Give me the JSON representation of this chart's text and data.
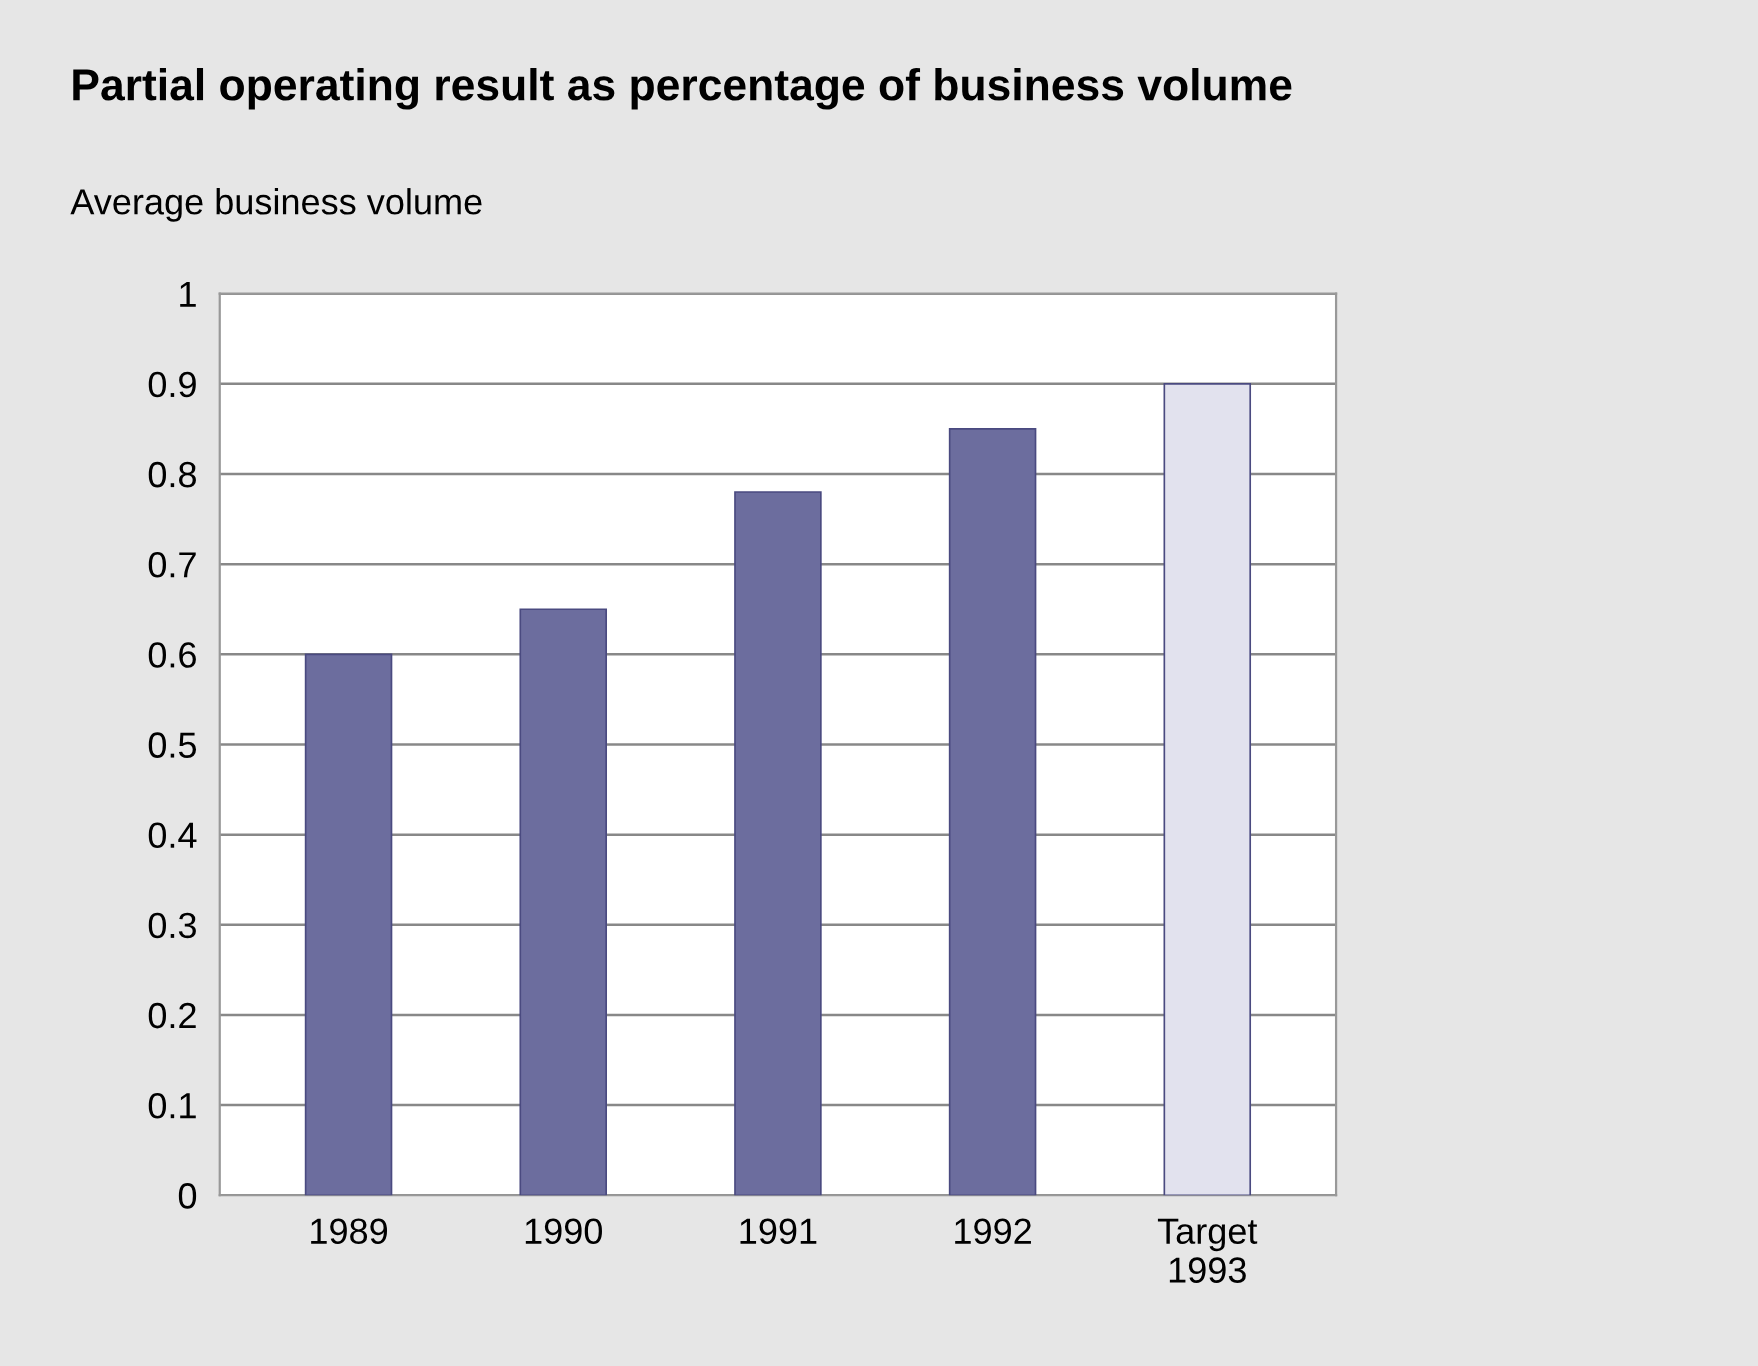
{
  "chart_data": {
    "type": "bar",
    "title": "Partial operating result as percentage of business volume",
    "subtitle": "Average business volume",
    "categories": [
      "1989",
      "1990",
      "1991",
      "1992",
      "Target\n1993"
    ],
    "values": [
      0.6,
      0.65,
      0.78,
      0.85,
      0.9
    ],
    "colors": [
      "#6c6d9e",
      "#6c6d9e",
      "#6c6d9e",
      "#6c6d9e",
      "#e2e2ee"
    ],
    "ylim": [
      0,
      1
    ],
    "yticks": [
      0,
      0.1,
      0.2,
      0.3,
      0.4,
      0.5,
      0.6,
      0.7,
      0.8,
      0.9,
      1
    ],
    "grid": "y"
  }
}
